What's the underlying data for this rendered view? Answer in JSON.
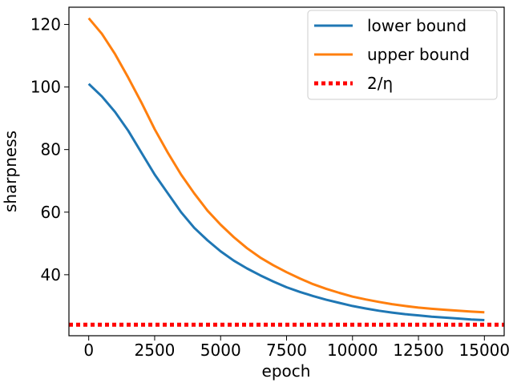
{
  "chart_data": {
    "type": "line",
    "xlabel": "epoch",
    "ylabel": "sharpness",
    "xlim": [
      -750,
      15750
    ],
    "ylim": [
      20.5,
      125.5
    ],
    "xticks": [
      0,
      2500,
      5000,
      7500,
      10000,
      12500,
      15000
    ],
    "yticks": [
      40,
      60,
      80,
      100,
      120
    ],
    "grid": false,
    "legend_position": "top-right",
    "series": [
      {
        "name": "lower bound",
        "color": "#1f77b4",
        "style": "solid",
        "x": [
          0,
          500,
          1000,
          1500,
          2000,
          2500,
          3000,
          3500,
          4000,
          4500,
          5000,
          5500,
          6000,
          6500,
          7000,
          7500,
          8000,
          8500,
          9000,
          9500,
          10000,
          10500,
          11000,
          11500,
          12000,
          12500,
          13000,
          13500,
          14000,
          14500,
          15000
        ],
        "y": [
          101,
          97,
          92,
          86,
          79,
          72,
          66,
          60,
          55,
          51,
          47.5,
          44.5,
          42,
          39.8,
          37.8,
          36,
          34.5,
          33.2,
          32,
          31,
          30,
          29.2,
          28.5,
          27.9,
          27.4,
          27,
          26.6,
          26.3,
          26,
          25.7,
          25.5
        ]
      },
      {
        "name": "upper bound",
        "color": "#ff7f0e",
        "style": "solid",
        "x": [
          0,
          500,
          1000,
          1500,
          2000,
          2500,
          3000,
          3500,
          4000,
          4500,
          5000,
          5500,
          6000,
          6500,
          7000,
          7500,
          8000,
          8500,
          9000,
          9500,
          10000,
          10500,
          11000,
          11500,
          12000,
          12500,
          13000,
          13500,
          14000,
          14500,
          15000
        ],
        "y": [
          122,
          117,
          110.5,
          103,
          95,
          86.5,
          79,
          72,
          66,
          60.5,
          56,
          52,
          48.5,
          45.5,
          43,
          40.8,
          38.8,
          37,
          35.5,
          34.2,
          33,
          32.1,
          31.3,
          30.6,
          30,
          29.5,
          29.1,
          28.8,
          28.5,
          28.2,
          28
        ]
      },
      {
        "name": "2/η",
        "color": "#ff0000",
        "style": "dotted",
        "x": [
          -750,
          15750
        ],
        "y": [
          24,
          24
        ]
      }
    ]
  }
}
